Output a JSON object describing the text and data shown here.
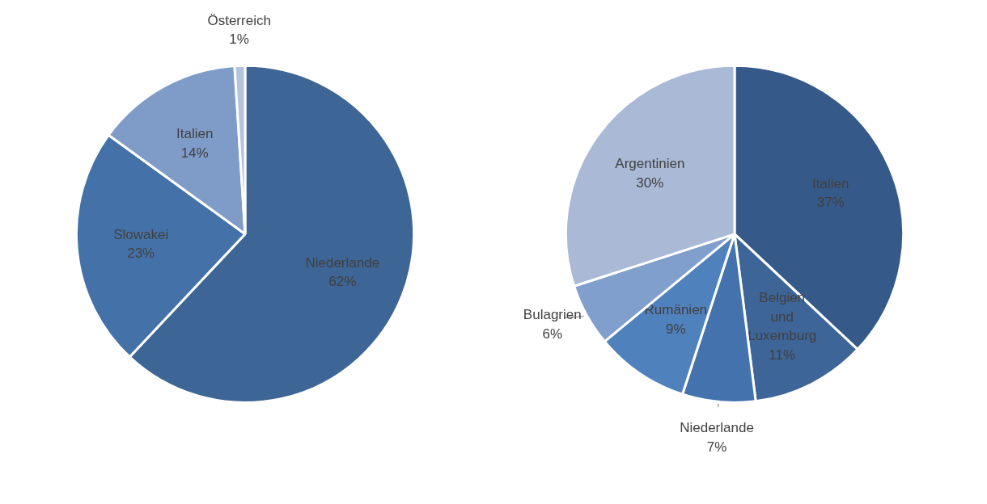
{
  "chart_data": [
    {
      "type": "pie",
      "categories": [
        "Niederlande",
        "Slowakei",
        "Italien",
        "Österreich"
      ],
      "values": [
        62,
        23,
        14,
        1
      ],
      "value_labels": [
        "62%",
        "23%",
        "14%",
        "1%"
      ],
      "colors": [
        "#3d6595",
        "#4472a8",
        "#7f9bc8",
        "#b4c3de"
      ]
    },
    {
      "type": "pie",
      "categories": [
        "Italien",
        "Belgien und Luxemburg",
        "Niederlande",
        "Rumänien",
        "Bulagrien",
        "Argentinien"
      ],
      "values": [
        37,
        11,
        7,
        9,
        6,
        30
      ],
      "value_labels": [
        "37%",
        "11%",
        "7%",
        "9%",
        "6%",
        "30%"
      ],
      "colors": [
        "#355a89",
        "#3d6598",
        "#4472ad",
        "#4f81bd",
        "#819fcc",
        "#aab9d6"
      ]
    }
  ]
}
